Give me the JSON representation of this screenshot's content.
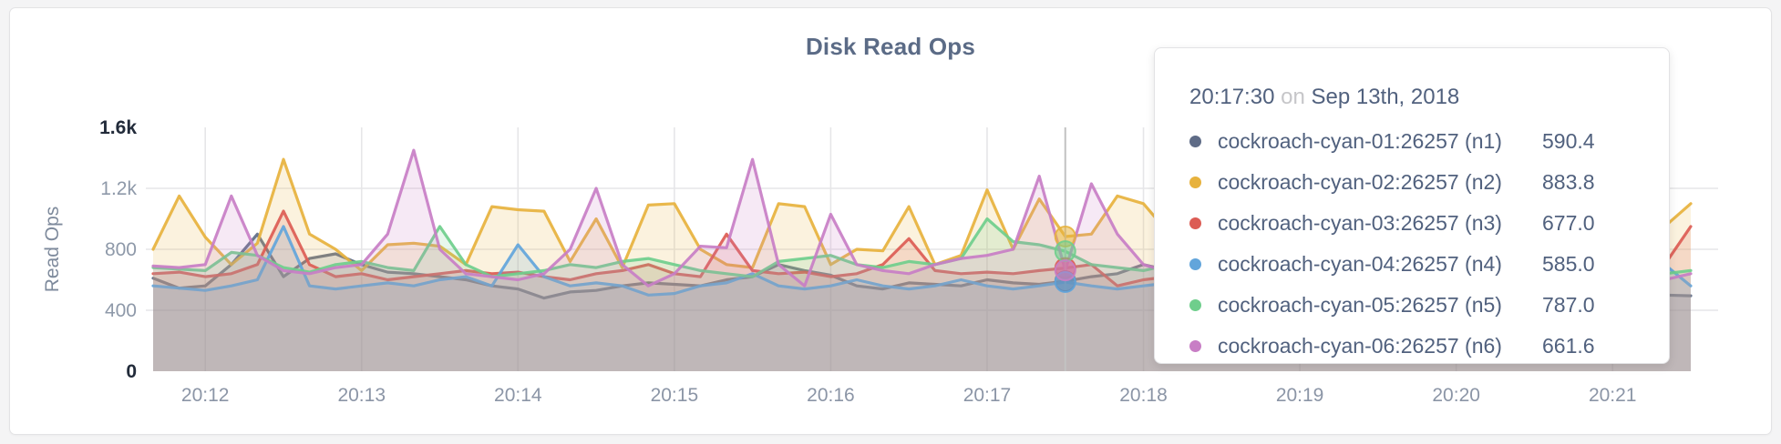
{
  "tooltip": {
    "time": "20:17:30",
    "on_word": "on",
    "date": "Sep 13th, 2018"
  },
  "chart_data": {
    "type": "line",
    "title": "Disk Read Ops",
    "ylabel": "Read Ops",
    "xlabel": "",
    "ylim": [
      0,
      1600
    ],
    "grid": true,
    "legend_position": "tooltip",
    "y_ticks": [
      {
        "label": "0",
        "value": 0,
        "emphasis": true
      },
      {
        "label": "400",
        "value": 400,
        "emphasis": false
      },
      {
        "label": "800",
        "value": 800,
        "emphasis": false
      },
      {
        "label": "1.2k",
        "value": 1200,
        "emphasis": false
      },
      {
        "label": "1.6k",
        "value": 1600,
        "emphasis": true
      }
    ],
    "x_ticks": [
      {
        "label": "20:12",
        "t": 2
      },
      {
        "label": "20:13",
        "t": 8
      },
      {
        "label": "20:14",
        "t": 14
      },
      {
        "label": "20:15",
        "t": 20
      },
      {
        "label": "20:16",
        "t": 26
      },
      {
        "label": "20:17",
        "t": 32
      },
      {
        "label": "20:18",
        "t": 38
      },
      {
        "label": "20:19",
        "t": 44
      },
      {
        "label": "20:20",
        "t": 50
      },
      {
        "label": "20:21",
        "t": 56
      }
    ],
    "hover": {
      "index": 35,
      "guideline_color": "#c2c2c2"
    },
    "series": [
      {
        "name": "cockroach-cyan-01:26257 (n1)",
        "color": "#5F6C87",
        "hover_display": "590.4",
        "values": [
          610,
          545,
          560,
          700,
          900,
          620,
          740,
          770,
          700,
          650,
          640,
          620,
          600,
          560,
          540,
          480,
          520,
          530,
          560,
          580,
          570,
          560,
          600,
          620,
          700,
          660,
          630,
          560,
          540,
          580,
          570,
          560,
          600,
          580,
          570,
          590.4,
          620,
          640,
          700,
          660,
          640,
          620,
          600,
          620,
          640,
          620,
          600,
          580,
          560,
          570,
          580,
          560,
          540,
          530,
          520,
          510,
          505,
          500,
          500,
          495
        ]
      },
      {
        "name": "cockroach-cyan-02:26257 (n2)",
        "color": "#E7B23D",
        "hover_display": "883.8",
        "values": [
          800,
          1150,
          880,
          700,
          840,
          1390,
          900,
          800,
          660,
          830,
          840,
          820,
          700,
          1080,
          1060,
          1050,
          720,
          1000,
          680,
          1090,
          1100,
          800,
          700,
          680,
          1100,
          1080,
          700,
          800,
          790,
          1080,
          700,
          760,
          1190,
          800,
          1130,
          883.8,
          900,
          1150,
          1100,
          900,
          800,
          750,
          820,
          760,
          700,
          740,
          800,
          760,
          720,
          780,
          760,
          700,
          740,
          780,
          720,
          700,
          760,
          750,
          950,
          1100
        ]
      },
      {
        "name": "cockroach-cyan-03:26257 (n3)",
        "color": "#DC5C54",
        "hover_display": "677.0",
        "values": [
          640,
          650,
          620,
          640,
          700,
          1050,
          700,
          620,
          640,
          600,
          620,
          640,
          660,
          640,
          650,
          620,
          600,
          640,
          660,
          700,
          640,
          620,
          900,
          660,
          640,
          650,
          620,
          640,
          700,
          870,
          660,
          640,
          650,
          640,
          660,
          677,
          700,
          560,
          600,
          620,
          640,
          630,
          620,
          640,
          630,
          620,
          640,
          650,
          630,
          640,
          620,
          640,
          630,
          620,
          640,
          650,
          640,
          640,
          700,
          950
        ]
      },
      {
        "name": "cockroach-cyan-04:26257 (n4)",
        "color": "#62A5DB",
        "hover_display": "585.0",
        "values": [
          560,
          545,
          530,
          560,
          600,
          950,
          560,
          540,
          560,
          580,
          560,
          600,
          620,
          560,
          830,
          620,
          560,
          580,
          560,
          500,
          510,
          560,
          580,
          640,
          560,
          540,
          560,
          600,
          560,
          540,
          560,
          600,
          560,
          540,
          560,
          585,
          560,
          540,
          560,
          580,
          560,
          550,
          560,
          650,
          600,
          560,
          580,
          560,
          540,
          560,
          570,
          560,
          580,
          560,
          540,
          560,
          600,
          1000,
          700,
          560
        ]
      },
      {
        "name": "cockroach-cyan-05:26257 (n5)",
        "color": "#6FCE8C",
        "hover_display": "787.0",
        "values": [
          680,
          670,
          660,
          780,
          760,
          680,
          650,
          700,
          720,
          680,
          660,
          950,
          700,
          620,
          640,
          660,
          700,
          680,
          720,
          740,
          700,
          660,
          640,
          620,
          720,
          740,
          760,
          700,
          680,
          720,
          700,
          740,
          1000,
          850,
          830,
          787,
          700,
          680,
          660,
          700,
          720,
          700,
          680,
          700,
          720,
          700,
          680,
          700,
          720,
          700,
          680,
          700,
          720,
          700,
          680,
          700,
          680,
          680,
          640,
          660
        ]
      },
      {
        "name": "cockroach-cyan-06:26257 (n6)",
        "color": "#C87EC5",
        "hover_display": "661.6",
        "values": [
          690,
          680,
          700,
          1150,
          760,
          660,
          640,
          680,
          700,
          900,
          1450,
          800,
          640,
          620,
          600,
          640,
          800,
          1200,
          700,
          560,
          640,
          820,
          810,
          1390,
          700,
          560,
          1030,
          700,
          660,
          640,
          700,
          740,
          760,
          800,
          1280,
          661.6,
          1230,
          900,
          700,
          650,
          640,
          660,
          680,
          640,
          620,
          640,
          660,
          640,
          620,
          630,
          650,
          640,
          620,
          640,
          660,
          640,
          620,
          640,
          600,
          640
        ]
      }
    ]
  }
}
